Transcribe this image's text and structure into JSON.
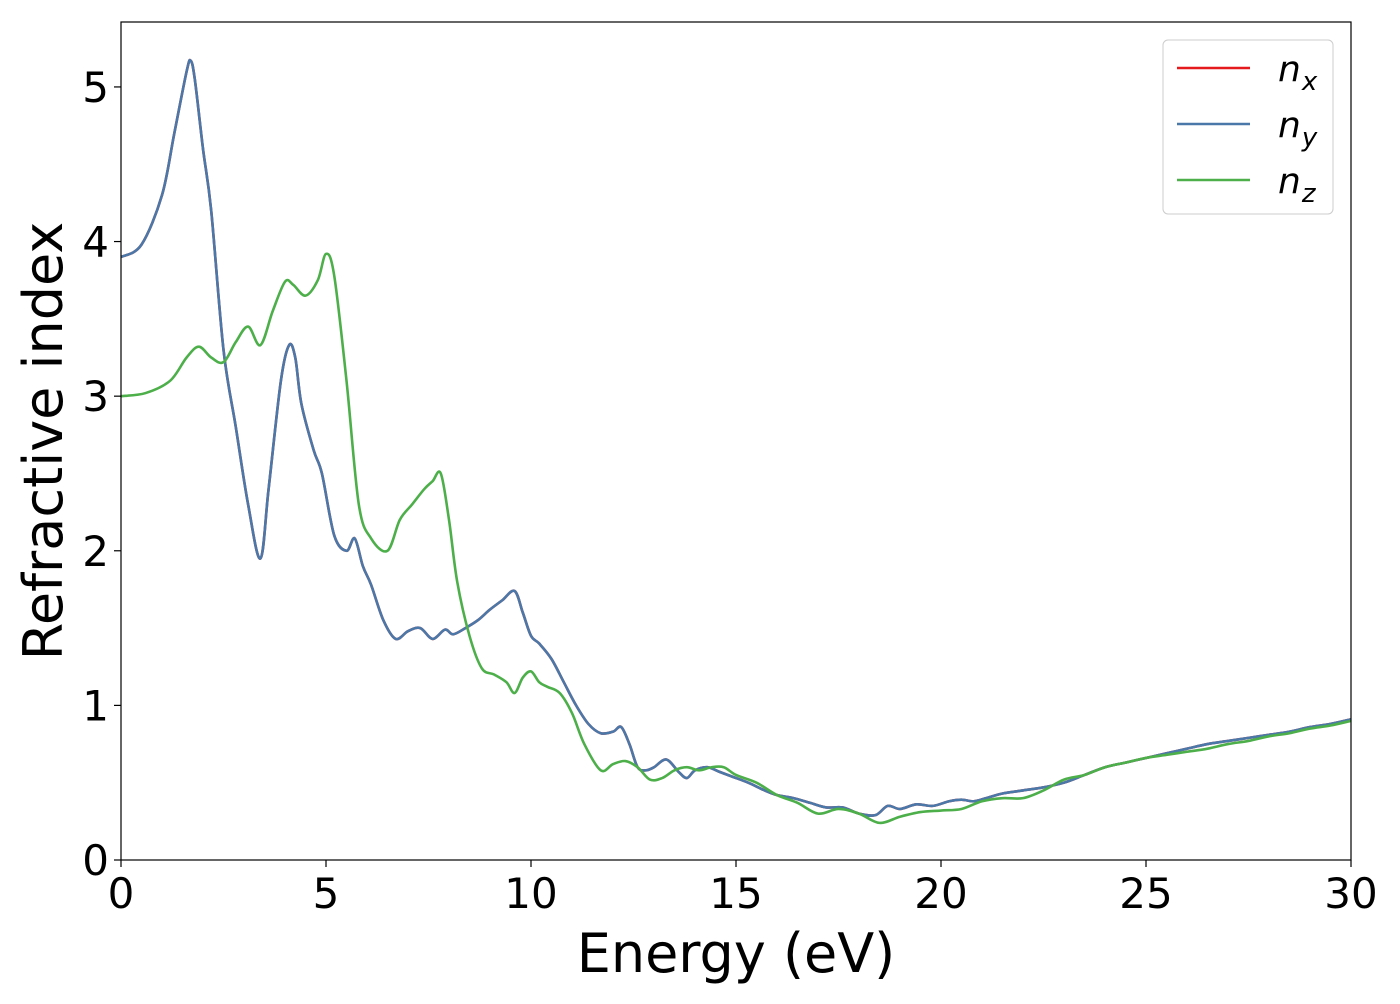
{
  "chart_data": {
    "type": "line",
    "title": "",
    "xlabel": "Energy (eV)",
    "ylabel": "Refractive index",
    "xlim": [
      0,
      30
    ],
    "ylim": [
      0,
      5.42
    ],
    "xticks": [
      0,
      5,
      10,
      15,
      20,
      25,
      30
    ],
    "yticks": [
      0,
      1,
      2,
      3,
      4,
      5
    ],
    "grid": false,
    "legend_position": "top-right",
    "series": [
      {
        "name": "n_x",
        "label_base": "n",
        "label_sub": "x",
        "color": "#e41a1c",
        "x": [
          0,
          0.5,
          1.0,
          1.3,
          1.6,
          1.7,
          1.8,
          2.0,
          2.2,
          2.5,
          2.8,
          3.1,
          3.4,
          3.6,
          3.9,
          4.1,
          4.25,
          4.4,
          4.7,
          4.9,
          5.2,
          5.5,
          5.7,
          5.9,
          6.1,
          6.4,
          6.7,
          7.0,
          7.3,
          7.6,
          7.9,
          8.1,
          8.4,
          8.7,
          9.0,
          9.3,
          9.6,
          9.8,
          10.0,
          10.2,
          10.5,
          10.8,
          11.1,
          11.4,
          11.7,
          12.0,
          12.2,
          12.4,
          12.6,
          12.8,
          13.0,
          13.3,
          13.6,
          13.8,
          14.0,
          14.3,
          14.6,
          14.9,
          15.3,
          15.7,
          16.0,
          16.4,
          16.8,
          17.2,
          17.6,
          18.0,
          18.4,
          18.7,
          19.0,
          19.4,
          19.8,
          20.2,
          20.5,
          20.8,
          21.1,
          21.5,
          22.0,
          22.5,
          23.0,
          23.5,
          24.0,
          24.5,
          25.0,
          25.5,
          26.0,
          26.5,
          27.0,
          27.5,
          28.0,
          28.5,
          29.0,
          29.5,
          30.0
        ],
        "values": [
          3.9,
          3.98,
          4.3,
          4.7,
          5.1,
          5.17,
          5.05,
          4.6,
          4.2,
          3.3,
          2.8,
          2.3,
          1.95,
          2.4,
          3.1,
          3.33,
          3.25,
          2.95,
          2.65,
          2.5,
          2.1,
          2.0,
          2.08,
          1.9,
          1.78,
          1.55,
          1.43,
          1.48,
          1.5,
          1.43,
          1.49,
          1.46,
          1.5,
          1.55,
          1.62,
          1.68,
          1.74,
          1.6,
          1.45,
          1.4,
          1.3,
          1.15,
          1.0,
          0.88,
          0.82,
          0.83,
          0.86,
          0.75,
          0.6,
          0.58,
          0.6,
          0.65,
          0.57,
          0.53,
          0.58,
          0.6,
          0.57,
          0.54,
          0.5,
          0.45,
          0.42,
          0.4,
          0.37,
          0.34,
          0.34,
          0.3,
          0.29,
          0.35,
          0.33,
          0.36,
          0.35,
          0.38,
          0.39,
          0.38,
          0.4,
          0.43,
          0.45,
          0.47,
          0.5,
          0.55,
          0.6,
          0.63,
          0.66,
          0.69,
          0.72,
          0.75,
          0.77,
          0.79,
          0.81,
          0.83,
          0.86,
          0.88,
          0.91
        ]
      },
      {
        "name": "n_y",
        "label_base": "n",
        "label_sub": "y",
        "color": "#4a78a8",
        "x": [
          0,
          0.5,
          1.0,
          1.3,
          1.6,
          1.7,
          1.8,
          2.0,
          2.2,
          2.5,
          2.8,
          3.1,
          3.4,
          3.6,
          3.9,
          4.1,
          4.25,
          4.4,
          4.7,
          4.9,
          5.2,
          5.5,
          5.7,
          5.9,
          6.1,
          6.4,
          6.7,
          7.0,
          7.3,
          7.6,
          7.9,
          8.1,
          8.4,
          8.7,
          9.0,
          9.3,
          9.6,
          9.8,
          10.0,
          10.2,
          10.5,
          10.8,
          11.1,
          11.4,
          11.7,
          12.0,
          12.2,
          12.4,
          12.6,
          12.8,
          13.0,
          13.3,
          13.6,
          13.8,
          14.0,
          14.3,
          14.6,
          14.9,
          15.3,
          15.7,
          16.0,
          16.4,
          16.8,
          17.2,
          17.6,
          18.0,
          18.4,
          18.7,
          19.0,
          19.4,
          19.8,
          20.2,
          20.5,
          20.8,
          21.1,
          21.5,
          22.0,
          22.5,
          23.0,
          23.5,
          24.0,
          24.5,
          25.0,
          25.5,
          26.0,
          26.5,
          27.0,
          27.5,
          28.0,
          28.5,
          29.0,
          29.5,
          30.0
        ],
        "values": [
          3.9,
          3.98,
          4.3,
          4.7,
          5.1,
          5.17,
          5.05,
          4.6,
          4.2,
          3.3,
          2.8,
          2.3,
          1.95,
          2.4,
          3.1,
          3.33,
          3.25,
          2.95,
          2.65,
          2.5,
          2.1,
          2.0,
          2.08,
          1.9,
          1.78,
          1.55,
          1.43,
          1.48,
          1.5,
          1.43,
          1.49,
          1.46,
          1.5,
          1.55,
          1.62,
          1.68,
          1.74,
          1.6,
          1.45,
          1.4,
          1.3,
          1.15,
          1.0,
          0.88,
          0.82,
          0.83,
          0.86,
          0.75,
          0.6,
          0.58,
          0.6,
          0.65,
          0.57,
          0.53,
          0.58,
          0.6,
          0.57,
          0.54,
          0.5,
          0.45,
          0.42,
          0.4,
          0.37,
          0.34,
          0.34,
          0.3,
          0.29,
          0.35,
          0.33,
          0.36,
          0.35,
          0.38,
          0.39,
          0.38,
          0.4,
          0.43,
          0.45,
          0.47,
          0.5,
          0.55,
          0.6,
          0.63,
          0.66,
          0.69,
          0.72,
          0.75,
          0.77,
          0.79,
          0.81,
          0.83,
          0.86,
          0.88,
          0.91
        ]
      },
      {
        "name": "n_z",
        "label_base": "n",
        "label_sub": "z",
        "color": "#4daf4a",
        "x": [
          0,
          0.6,
          1.2,
          1.6,
          1.9,
          2.2,
          2.5,
          2.8,
          3.1,
          3.4,
          3.7,
          4.0,
          4.2,
          4.5,
          4.8,
          5.0,
          5.2,
          5.5,
          5.8,
          6.1,
          6.5,
          6.8,
          7.1,
          7.4,
          7.6,
          7.8,
          8.0,
          8.2,
          8.5,
          8.8,
          9.1,
          9.4,
          9.6,
          9.8,
          10.0,
          10.2,
          10.4,
          10.7,
          11.0,
          11.3,
          11.7,
          12.0,
          12.3,
          12.6,
          12.9,
          13.2,
          13.5,
          13.8,
          14.1,
          14.4,
          14.7,
          15.0,
          15.5,
          16.0,
          16.5,
          17.0,
          17.5,
          18.0,
          18.5,
          19.0,
          19.5,
          20.0,
          20.5,
          21.0,
          21.5,
          22.0,
          22.5,
          23.0,
          23.5,
          24.0,
          24.5,
          25.0,
          25.5,
          26.0,
          26.5,
          27.0,
          27.5,
          28.0,
          28.5,
          29.0,
          29.5,
          30.0
        ],
        "values": [
          3.0,
          3.02,
          3.1,
          3.25,
          3.32,
          3.25,
          3.22,
          3.35,
          3.45,
          3.33,
          3.55,
          3.74,
          3.72,
          3.65,
          3.75,
          3.92,
          3.78,
          3.1,
          2.3,
          2.08,
          2.0,
          2.2,
          2.3,
          2.4,
          2.45,
          2.5,
          2.2,
          1.8,
          1.45,
          1.24,
          1.2,
          1.15,
          1.08,
          1.18,
          1.22,
          1.15,
          1.12,
          1.08,
          0.95,
          0.75,
          0.58,
          0.62,
          0.64,
          0.6,
          0.52,
          0.53,
          0.58,
          0.6,
          0.58,
          0.6,
          0.6,
          0.55,
          0.5,
          0.42,
          0.37,
          0.3,
          0.33,
          0.3,
          0.24,
          0.28,
          0.31,
          0.32,
          0.33,
          0.38,
          0.4,
          0.4,
          0.45,
          0.52,
          0.55,
          0.6,
          0.63,
          0.66,
          0.68,
          0.7,
          0.72,
          0.75,
          0.77,
          0.8,
          0.82,
          0.85,
          0.87,
          0.9
        ]
      }
    ]
  }
}
